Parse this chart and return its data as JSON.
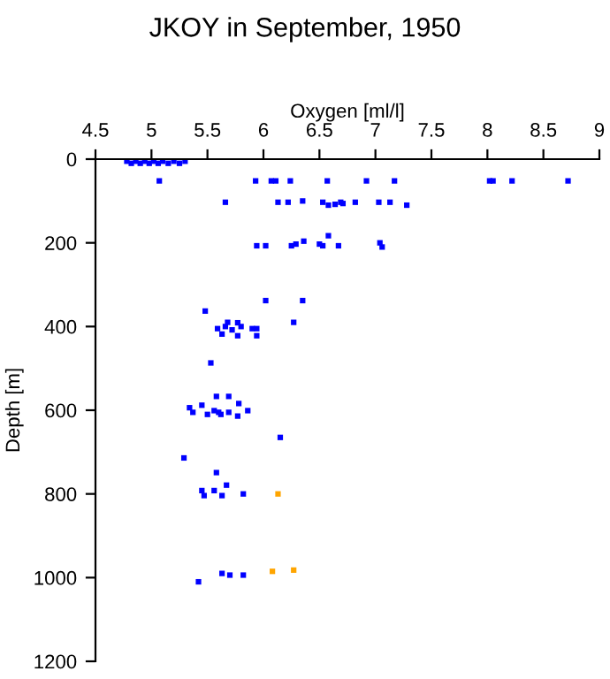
{
  "chart_data": {
    "type": "scatter",
    "title": "JKOY in September, 1950",
    "xlabel": "Oxygen [ml/l]",
    "ylabel": "Depth [m]",
    "xlim": [
      4.5,
      9
    ],
    "xticks": [
      4.5,
      5,
      5.5,
      6,
      6.5,
      7,
      7.5,
      8,
      8.5,
      9
    ],
    "ylim": [
      1200,
      0
    ],
    "yticks": [
      0,
      200,
      400,
      600,
      800,
      1000,
      1200
    ],
    "grid": false,
    "marker": "square",
    "series": [
      {
        "color": "#0000ff",
        "x": [
          4.78,
          4.82,
          4.86,
          4.9,
          4.94,
          4.98,
          5.02,
          5.06,
          5.1,
          5.15,
          5.2,
          5.25,
          5.3,
          5.07,
          5.93,
          6.07,
          6.11,
          6.24,
          6.57,
          6.92,
          7.17,
          8.02,
          8.05,
          8.22,
          8.72,
          5.66,
          6.13,
          6.22,
          6.35,
          6.53,
          6.58,
          6.64,
          6.69,
          6.71,
          6.82,
          7.03,
          7.13,
          7.28,
          5.94,
          6.02,
          6.25,
          6.29,
          6.36,
          6.5,
          6.53,
          6.58,
          6.67,
          7.04,
          7.06,
          6.02,
          6.35,
          5.48,
          6.27,
          5.68,
          5.77,
          5.59,
          5.66,
          5.72,
          5.8,
          5.63,
          5.77,
          5.9,
          5.94,
          5.94,
          5.53,
          5.58,
          5.69,
          5.78,
          5.45,
          5.34,
          5.56,
          5.86,
          5.37,
          5.6,
          5.69,
          5.5,
          5.62,
          5.77,
          6.15,
          5.29,
          5.58,
          5.67,
          5.45,
          5.56,
          5.82,
          5.47,
          5.63,
          5.63,
          5.7,
          5.82,
          5.42
        ],
        "values": [
          5,
          10,
          5,
          10,
          5,
          10,
          5,
          10,
          5,
          10,
          5,
          10,
          5,
          52,
          52,
          52,
          52,
          52,
          52,
          52,
          52,
          52,
          52,
          52,
          52,
          103,
          103,
          103,
          100,
          103,
          110,
          108,
          103,
          106,
          103,
          103,
          103,
          110,
          207,
          207,
          207,
          203,
          196,
          203,
          207,
          183,
          207,
          200,
          210,
          338,
          338,
          363,
          390,
          390,
          391,
          405,
          400,
          408,
          400,
          418,
          422,
          405,
          405,
          422,
          487,
          567,
          567,
          584,
          588,
          594,
          601,
          601,
          605,
          605,
          605,
          610,
          610,
          614,
          665,
          714,
          749,
          779,
          792,
          792,
          800,
          804,
          804,
          990,
          994,
          994,
          1010
        ]
      },
      {
        "color": "#ffa500",
        "x": [
          6.13,
          6.27,
          6.08
        ],
        "values": [
          800,
          982,
          985
        ]
      }
    ]
  }
}
